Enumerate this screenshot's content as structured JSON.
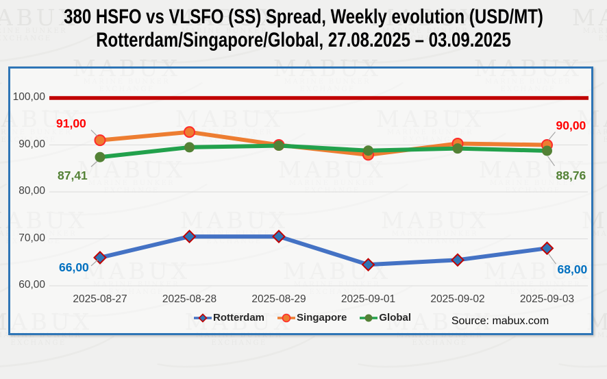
{
  "title": {
    "line1": "380 HSFO vs VLSFO (SS) Spread, Weekly evolution (USD/MT)",
    "line2": "Rotterdam/Singapore/Global, 27.08.2025 – 03.09.2025"
  },
  "watermark": {
    "brand": "MABUX",
    "tagline": "MARINE BUNKER EXCHANGE"
  },
  "source": {
    "text": "Source: mabux.com"
  },
  "colors": {
    "page_background": "#F0F0EF",
    "chart_border": "#2E75B6",
    "gridline": "#DBDBDB",
    "axis_text": "#3F3F3F",
    "threshold_red": "#C00000",
    "leader_line": "#A6A6A6"
  },
  "chart_data": {
    "type": "line",
    "title": "380 HSFO vs VLSFO (SS) Spread, Weekly evolution (USD/MT) Rotterdam/Singapore/Global, 27.08.2025 – 03.09.2025",
    "categories": [
      "2025-08-27",
      "2025-08-28",
      "2025-08-29",
      "2025-09-01",
      "2025-09-02",
      "2025-09-03"
    ],
    "series": [
      {
        "name": "Rotterdam",
        "values": [
          66.0,
          70.5,
          70.5,
          64.5,
          65.5,
          68.0
        ],
        "color": "#4472C4",
        "marker": "diamond",
        "marker_fill": "#2E75B6",
        "marker_stroke": "#C00000",
        "label_color": "#0070C0"
      },
      {
        "name": "Singapore",
        "values": [
          91.0,
          92.75,
          90.0,
          87.9,
          90.3,
          90.0
        ],
        "color": "#ED7D31",
        "marker": "circle",
        "marker_fill": "#ED7D31",
        "marker_stroke": "#FF2A2A",
        "label_color": "#FF0000"
      },
      {
        "name": "Global",
        "values": [
          87.41,
          89.5,
          89.85,
          88.8,
          89.25,
          88.76
        ],
        "color": "#22A14C",
        "marker": "circle",
        "marker_fill": "#538135",
        "marker_stroke": "#538135",
        "label_color": "#538135"
      }
    ],
    "threshold": {
      "value": 100,
      "color": "#C00000"
    },
    "ylim": [
      60,
      100
    ],
    "yticks": [
      {
        "label": "100,00",
        "value": 100
      },
      {
        "label": "90,00",
        "value": 90
      },
      {
        "label": "80,00",
        "value": 80
      },
      {
        "label": "70,00",
        "value": 70
      },
      {
        "label": "60,00",
        "value": 60
      }
    ],
    "grid": true,
    "legend_position": "bottom",
    "data_labels": [
      {
        "id": "singapore-first",
        "series": 1,
        "index": 0,
        "text": "91,00"
      },
      {
        "id": "global-first",
        "series": 2,
        "index": 0,
        "text": "87,41"
      },
      {
        "id": "rotterdam-first",
        "series": 0,
        "index": 0,
        "text": "66,00"
      },
      {
        "id": "singapore-last",
        "series": 1,
        "index": 5,
        "text": "90,00"
      },
      {
        "id": "global-last",
        "series": 2,
        "index": 5,
        "text": "88,76"
      },
      {
        "id": "rotterdam-last",
        "series": 0,
        "index": 5,
        "text": "68,00"
      }
    ],
    "legend": [
      "Rotterdam",
      "Singapore",
      "Global"
    ]
  }
}
